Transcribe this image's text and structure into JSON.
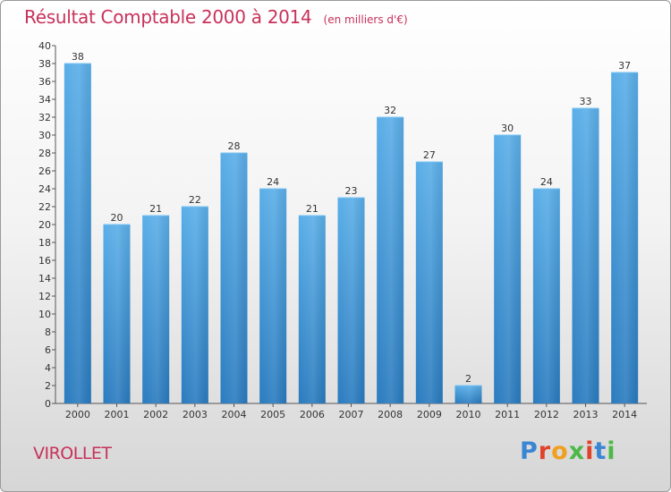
{
  "header": {
    "title": "Résultat Comptable 2000 à 2014",
    "subtitle": "(en milliers d'€)"
  },
  "footer": {
    "commune": "VIROLLET",
    "logo_letters": [
      "P",
      "r",
      "o",
      "x",
      "i",
      "t",
      "i"
    ],
    "logo_colors": [
      "#3a86d4",
      "#e0432a",
      "#f0a020",
      "#4db848",
      "#e0432a",
      "#3a86d4",
      "#4db848"
    ]
  },
  "colors": {
    "bar_top": "#5aaee8",
    "bar_bottom": "#2a7bbf",
    "title": "#c8325a"
  },
  "chart_data": {
    "type": "bar",
    "title": "Résultat Comptable 2000 à 2014",
    "subtitle": "(en milliers d'€)",
    "xlabel": "",
    "ylabel": "",
    "categories": [
      "2000",
      "2001",
      "2002",
      "2003",
      "2004",
      "2005",
      "2006",
      "2007",
      "2008",
      "2009",
      "2010",
      "2011",
      "2012",
      "2013",
      "2014"
    ],
    "values": [
      38,
      20,
      21,
      22,
      28,
      24,
      21,
      23,
      32,
      27,
      2,
      30,
      24,
      33,
      37
    ],
    "ylim": [
      0,
      40
    ],
    "yticks": [
      0,
      2,
      4,
      6,
      8,
      10,
      12,
      14,
      16,
      18,
      20,
      22,
      24,
      26,
      28,
      30,
      32,
      34,
      36,
      38,
      40
    ],
    "grid": false,
    "legend": "none"
  }
}
